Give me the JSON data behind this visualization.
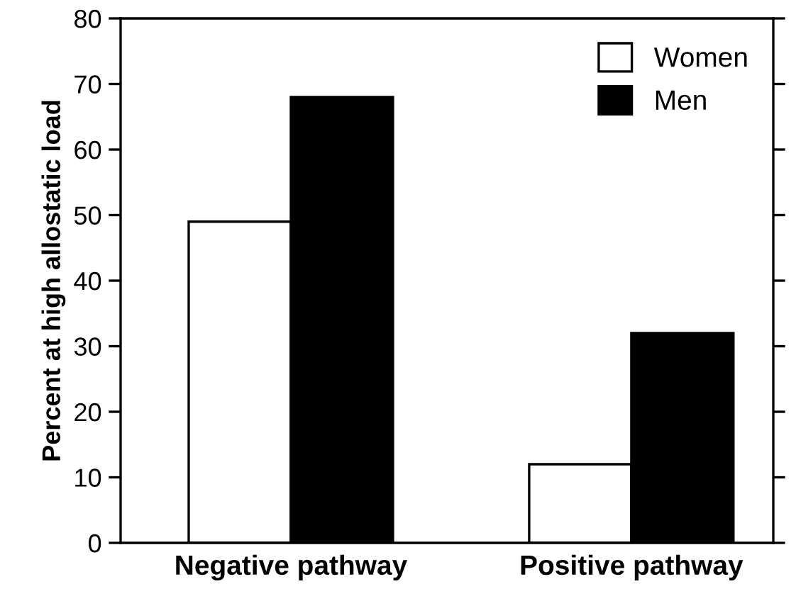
{
  "chart_data": {
    "type": "bar",
    "ylabel": "Percent at high allostatic load",
    "categories": [
      "Negative pathway",
      "Positive pathway"
    ],
    "series": [
      {
        "name": "Women",
        "color": "#ffffff",
        "values": [
          49,
          12
        ]
      },
      {
        "name": "Men",
        "color": "#000000",
        "values": [
          68,
          32
        ]
      }
    ],
    "ylim": [
      0,
      80
    ],
    "yticks": [
      0,
      10,
      20,
      30,
      40,
      50,
      60,
      70,
      80
    ],
    "grid": false,
    "legend": "top right"
  }
}
